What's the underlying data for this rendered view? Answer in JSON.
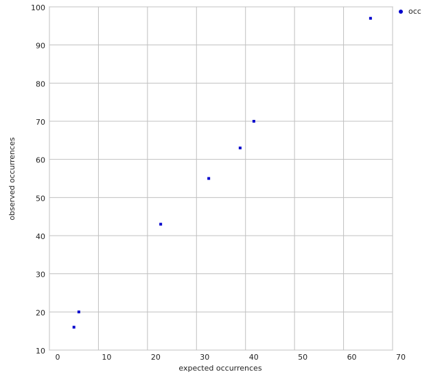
{
  "chart_data": {
    "type": "scatter",
    "xlabel": "expected occurrences",
    "ylabel": "observed occurrences",
    "series": [
      {
        "name": "occ",
        "color": "#0000cc",
        "x": [
          5.0,
          6.0,
          22.7,
          32.5,
          38.9,
          41.7,
          65.5
        ],
        "values": [
          16,
          20,
          43,
          55,
          63,
          70,
          97
        ]
      }
    ],
    "xlim": [
      0,
      70
    ],
    "xticks": [
      0,
      10,
      20,
      30,
      40,
      50,
      60,
      70
    ],
    "ylim": [
      10,
      100
    ],
    "yticks": [
      10,
      20,
      30,
      40,
      50,
      60,
      70,
      80,
      90,
      100
    ],
    "grid": true,
    "legend": "top-right"
  }
}
